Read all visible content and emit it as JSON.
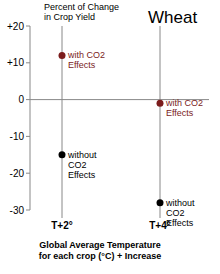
{
  "chart_data": {
    "type": "scatter",
    "title": "Wheat",
    "ylabel": "Percent of Change in Crop Yield",
    "xlabel": "Global Average Temperature for each crop (°C) + Increase",
    "categories": [
      "T+2°",
      "T+4°"
    ],
    "series": [
      {
        "name": "with CO2 Effects",
        "color": "#7b1c1c",
        "values": [
          12,
          -1
        ]
      },
      {
        "name": "without CO2 Effects",
        "color": "#000000",
        "values": [
          -15,
          -28
        ]
      }
    ],
    "ylim": [
      -30,
      20
    ],
    "yticks": [
      -30,
      -20,
      -10,
      0,
      {
        "value": 10,
        "label": "+10"
      },
      {
        "value": 20,
        "label": "+20"
      }
    ],
    "grid": true,
    "marker": "circle"
  }
}
